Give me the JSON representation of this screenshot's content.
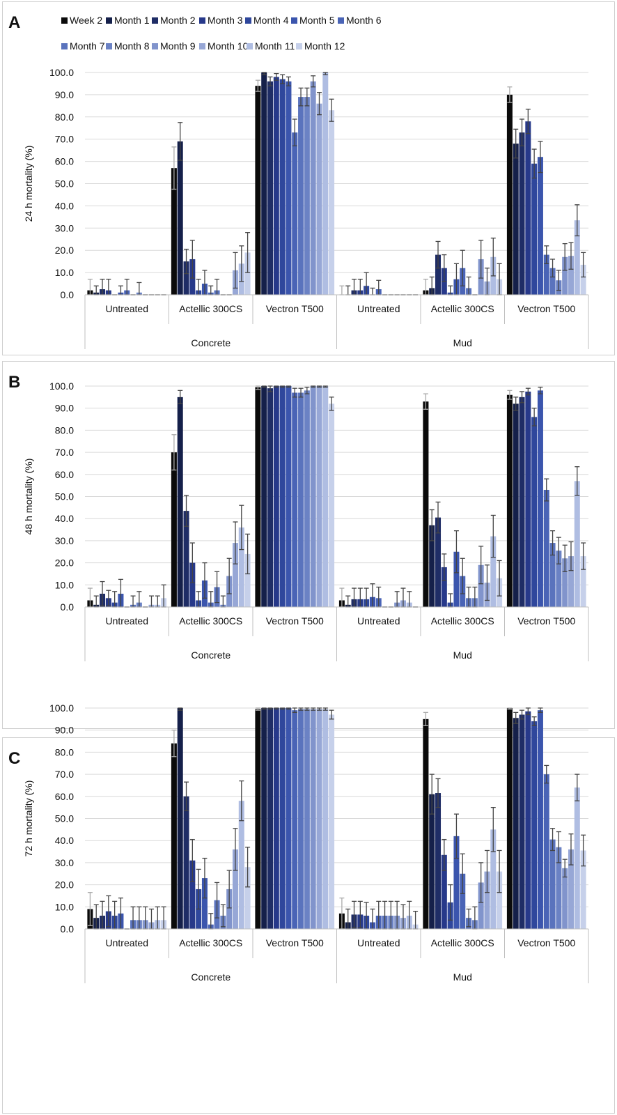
{
  "chart_data": {
    "type": "bar",
    "legend": [
      "Week 2",
      "Month 1",
      "Month 2",
      "Month 3",
      "Month 4",
      "Month 5",
      "Month 6",
      "Month 7",
      "Month 8",
      "Month 9",
      "Month 10",
      "Month 11",
      "Month 12"
    ],
    "series_colors": [
      "#0b0b0b",
      "#15204a",
      "#1f2d66",
      "#27398a",
      "#2f479c",
      "#3b55ad",
      "#4a64b6",
      "#5a73bd",
      "#6b82c4",
      "#8194cc",
      "#97a7d6",
      "#afbde2",
      "#c6d0ea"
    ],
    "legend_position": "top",
    "surfaces": [
      "Concrete",
      "Mud"
    ],
    "treatments": [
      "Untreated",
      "Actellic 300CS",
      "Vectron T500"
    ],
    "ylim": [
      0,
      100
    ],
    "yticks": [
      "0.0",
      "10.0",
      "20.0",
      "30.0",
      "40.0",
      "50.0",
      "60.0",
      "70.0",
      "80.0",
      "90.0",
      "100.0"
    ],
    "grid": true,
    "panels": [
      {
        "label": "A",
        "ylabel": "24 h mortality (%)",
        "groups": [
          {
            "surface": "Concrete",
            "treatment": "Untreated",
            "values": [
              2,
              1,
              2.5,
              2,
              0,
              1,
              2,
              0,
              1,
              0,
              0,
              0,
              0
            ],
            "errors": [
              5,
              3,
              4.5,
              5,
              0,
              3,
              5,
              0,
              4.5,
              0,
              0,
              0,
              0
            ]
          },
          {
            "surface": "Concrete",
            "treatment": "Actellic 300CS",
            "values": [
              57,
              69,
              15,
              16,
              2,
              5,
              1,
              2,
              0,
              0,
              11,
              14,
              19
            ],
            "errors": [
              9.5,
              8.5,
              5.5,
              8.5,
              5,
              6,
              3,
              5,
              0,
              0,
              8,
              8,
              9
            ]
          },
          {
            "surface": "Concrete",
            "treatment": "Vectron T500",
            "values": [
              94,
              100,
              96,
              98,
              97,
              96,
              73,
              89,
              89,
              96,
              86,
              100,
              83
            ],
            "errors": [
              2.5,
              1,
              2,
              1.5,
              2,
              2,
              6,
              4,
              4,
              2.5,
              5,
              1,
              5
            ]
          },
          {
            "surface": "Mud",
            "treatment": "Untreated",
            "values": [
              0,
              0,
              2,
              2,
              4,
              0,
              2.5,
              0,
              0,
              0,
              0,
              0,
              0
            ],
            "errors": [
              4,
              4,
              5,
              5,
              6,
              3,
              4,
              0,
              0,
              0,
              0,
              0,
              0
            ]
          },
          {
            "surface": "Mud",
            "treatment": "Actellic 300CS",
            "values": [
              2,
              3,
              18,
              12,
              1,
              7,
              12,
              3,
              0,
              16,
              6,
              17,
              7
            ],
            "errors": [
              5,
              5,
              6,
              6,
              3,
              7,
              8,
              5,
              0,
              8.5,
              6,
              8.5,
              7
            ]
          },
          {
            "surface": "Mud",
            "treatment": "Vectron T500",
            "values": [
              90,
              68,
              73,
              78,
              59,
              62,
              18,
              12,
              6.5,
              17,
              17.5,
              33.5,
              13.5
            ],
            "errors": [
              3.5,
              6.5,
              6,
              5.5,
              6.5,
              7,
              4,
              4,
              4.5,
              6,
              6,
              7,
              5.5
            ]
          }
        ]
      },
      {
        "label": "B",
        "ylabel": "48 h mortality (%)",
        "groups": [
          {
            "surface": "Concrete",
            "treatment": "Untreated",
            "values": [
              3,
              1,
              6,
              4,
              2,
              6,
              0,
              1,
              2,
              0,
              1,
              1,
              4
            ],
            "errors": [
              5.5,
              4,
              5.5,
              3.5,
              5,
              6.5,
              0,
              4,
              5,
              0,
              4,
              4,
              6
            ]
          },
          {
            "surface": "Concrete",
            "treatment": "Actellic 300CS",
            "values": [
              70,
              95,
              43.5,
              20,
              3,
              12,
              2,
              9,
              1,
              14,
              29,
              36,
              24
            ],
            "errors": [
              8,
              3,
              7,
              9,
              4,
              8,
              5,
              7,
              4,
              8,
              9.5,
              10,
              9
            ]
          },
          {
            "surface": "Concrete",
            "treatment": "Vectron T500",
            "values": [
              99.5,
              100,
              99,
              100,
              100,
              100,
              97,
              97,
              98,
              100,
              100,
              100,
              92
            ],
            "errors": [
              1,
              0.5,
              1.5,
              0.5,
              0.5,
              0.5,
              2,
              2,
              1.5,
              0.5,
              0.5,
              0.5,
              3
            ]
          },
          {
            "surface": "Mud",
            "treatment": "Untreated",
            "values": [
              3,
              1,
              3.5,
              3.5,
              3.5,
              4.5,
              4,
              0,
              0,
              2,
              3,
              2,
              0
            ],
            "errors": [
              5.5,
              4,
              5,
              5,
              5,
              6,
              5,
              0,
              0,
              5,
              5.5,
              5,
              0
            ]
          },
          {
            "surface": "Mud",
            "treatment": "Actellic 300CS",
            "values": [
              93,
              37,
              40.5,
              18,
              2,
              25,
              14,
              4,
              4,
              19,
              11,
              32,
              13
            ],
            "errors": [
              3.5,
              7,
              7,
              6,
              4,
              9.5,
              8,
              5,
              5,
              8.5,
              8,
              9.5,
              8
            ]
          },
          {
            "surface": "Mud",
            "treatment": "Vectron T500",
            "values": [
              96,
              92,
              95,
              97.5,
              86,
              98,
              53,
              29,
              25.5,
              22,
              23,
              57,
              23
            ],
            "errors": [
              2,
              3,
              2.5,
              1.5,
              4,
              1.5,
              5,
              5.5,
              6,
              6,
              6.5,
              6.5,
              6
            ]
          }
        ]
      },
      {
        "label": "C",
        "ylabel": "72 h mortality (%)",
        "groups": [
          {
            "surface": "Concrete",
            "treatment": "Untreated",
            "values": [
              9,
              5,
              6,
              8,
              6,
              7,
              0,
              4,
              4,
              4,
              3,
              4,
              4
            ],
            "errors": [
              7.5,
              6,
              6.5,
              7,
              6.5,
              7,
              0,
              6,
              6,
              6,
              6,
              6,
              6
            ]
          },
          {
            "surface": "Concrete",
            "treatment": "Actellic 300CS",
            "values": [
              84,
              100,
              60,
              31,
              18,
              23,
              2,
              13,
              6,
              18,
              36,
              58,
              28
            ],
            "errors": [
              6,
              1,
              6.5,
              9.5,
              9,
              9,
              5,
              8,
              5,
              8.5,
              9.5,
              9,
              9
            ]
          },
          {
            "surface": "Concrete",
            "treatment": "Vectron T500",
            "values": [
              99.5,
              100,
              100,
              100,
              100,
              100,
              99,
              99.5,
              99.5,
              99.5,
              99.5,
              99.5,
              97
            ],
            "errors": [
              0.5,
              0.5,
              0.5,
              0.5,
              0.5,
              0.5,
              1,
              0.5,
              0.5,
              0.5,
              0.5,
              0.5,
              2
            ]
          },
          {
            "surface": "Mud",
            "treatment": "Untreated",
            "values": [
              7,
              3,
              6.5,
              6.5,
              6,
              3,
              6,
              6,
              6,
              6,
              5,
              6,
              2
            ],
            "errors": [
              7,
              6,
              6,
              6,
              6,
              6,
              6.5,
              6.5,
              6.5,
              6.5,
              6,
              6.5,
              6
            ]
          },
          {
            "surface": "Mud",
            "treatment": "Actellic 300CS",
            "values": [
              95,
              61,
              61.5,
              33.5,
              12,
              42,
              25,
              5,
              4,
              21,
              26,
              45,
              26
            ],
            "errors": [
              3,
              9,
              6.5,
              7,
              8,
              10,
              9,
              4,
              6,
              9,
              9.5,
              10,
              9.5
            ]
          },
          {
            "surface": "Mud",
            "treatment": "Vectron T500",
            "values": [
              100,
              95.5,
              97,
              98.5,
              94,
              99,
              70,
              40.5,
              37,
              27.5,
              36,
              64,
              35.5
            ],
            "errors": [
              0.5,
              2.5,
              2,
              1.5,
              2,
              1,
              4,
              5,
              7,
              4,
              7,
              6,
              7
            ]
          }
        ]
      }
    ]
  }
}
